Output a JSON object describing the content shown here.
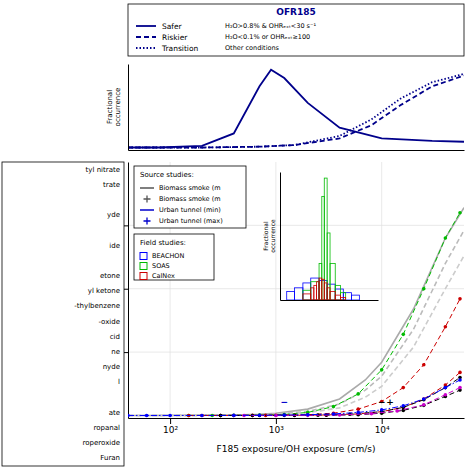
{
  "chart_data": [
    {
      "type": "line",
      "xlabel": "F185 exposure/OH exposure (cm/s)",
      "log": "x",
      "xlim": [
        40,
        60000
      ],
      "ylim": [
        -0.01,
        1.0
      ],
      "xticks": [
        {
          "value": 100,
          "label": "10²"
        },
        {
          "value": 1000,
          "label": "10³"
        },
        {
          "value": 10000,
          "label": "10⁴"
        }
      ],
      "yticks": [
        0.25,
        0.5,
        0.75
      ],
      "tick_labels": "x",
      "grid": true,
      "series": [
        {
          "color": "#aaaaaa",
          "line_style": "solid",
          "x": [
            40,
            60,
            100,
            200,
            400,
            700,
            1000,
            2000,
            4000,
            7000,
            10000,
            20000,
            40000,
            60000
          ],
          "values": [
            8e-05,
            0.00015,
            0.0003,
            0.0008,
            0.002,
            0.005,
            0.009,
            0.025,
            0.065,
            0.14,
            0.21,
            0.42,
            0.7,
            0.82
          ]
        },
        {
          "color": "#bbbbbb",
          "line_style": "dashed",
          "x": [
            40,
            60,
            100,
            200,
            400,
            700,
            1000,
            2000,
            4000,
            7000,
            10000,
            20000,
            40000,
            60000
          ],
          "values": [
            4e-05,
            8e-05,
            0.00018,
            0.0005,
            0.0013,
            0.003,
            0.006,
            0.016,
            0.045,
            0.1,
            0.155,
            0.34,
            0.6,
            0.73
          ]
        },
        {
          "color": "#cccccc",
          "line_style": "dashed",
          "x": [
            40,
            60,
            100,
            200,
            400,
            700,
            1000,
            2000,
            4000,
            7000,
            10000,
            20000,
            40000,
            60000
          ],
          "values": [
            2e-05,
            4e-05,
            0.0001,
            0.0003,
            0.0008,
            0.002,
            0.0038,
            0.011,
            0.03,
            0.072,
            0.115,
            0.27,
            0.5,
            0.63
          ]
        },
        {
          "color": "#00bb00",
          "marker": "circle",
          "line_style": "dashed",
          "x": [
            150,
            250,
            400,
            700,
            1200,
            2000,
            3500,
            6000,
            10000,
            16000,
            25000,
            40000,
            55000
          ],
          "values": [
            8e-05,
            0.00015,
            0.0004,
            0.0012,
            0.004,
            0.012,
            0.035,
            0.085,
            0.18,
            0.32,
            0.5,
            0.7,
            0.8
          ]
        },
        {
          "color": "#cc0000",
          "marker": "circle",
          "line_style": "dashed",
          "x": [
            150,
            300,
            600,
            1000,
            2000,
            3500,
            6000,
            10000,
            16000,
            25000,
            40000,
            55000
          ],
          "values": [
            6e-05,
            0.00012,
            0.0003,
            0.0009,
            0.003,
            0.009,
            0.025,
            0.055,
            0.11,
            0.2,
            0.35,
            0.46
          ]
        },
        {
          "color": "#cc0000",
          "marker": "circle",
          "line_style": "dashed",
          "x": [
            200,
            400,
            800,
            1500,
            3000,
            6000,
            10000,
            16000,
            25000,
            40000,
            55000
          ],
          "values": [
            4e-05,
            0.0001,
            0.00025,
            0.0007,
            0.002,
            0.006,
            0.015,
            0.032,
            0.065,
            0.12,
            0.17
          ]
        },
        {
          "color": "#000000",
          "marker": "circle",
          "line_style": "dashed",
          "x": [
            300,
            600,
            1200,
            2500,
            5000,
            10000,
            16000,
            25000,
            40000,
            55000
          ],
          "values": [
            5e-05,
            0.00012,
            0.0004,
            0.0013,
            0.005,
            0.015,
            0.032,
            0.062,
            0.11,
            0.15
          ]
        },
        {
          "color": "#000000",
          "marker": "circle",
          "line_style": "dashed",
          "x": [
            300,
            700,
            1500,
            3000,
            6000,
            10000,
            16000,
            25000,
            40000,
            55000
          ],
          "values": [
            3e-05,
            8e-05,
            0.00025,
            0.0009,
            0.003,
            0.009,
            0.02,
            0.04,
            0.075,
            0.1
          ]
        },
        {
          "color": "#cc00cc",
          "marker": "circle",
          "line_style": "dashed",
          "x": [
            500,
            1000,
            2000,
            4000,
            8000,
            14000,
            25000,
            40000,
            55000
          ],
          "values": [
            5e-05,
            0.00015,
            0.0005,
            0.0018,
            0.007,
            0.018,
            0.042,
            0.082,
            0.11
          ]
        },
        {
          "color": "#0000ff",
          "marker": "circle",
          "line_style": "dashdot",
          "x": [
            40,
            60,
            100,
            200,
            400,
            700,
            1200,
            2000,
            3500,
            6000,
            10000,
            16000,
            25000,
            40000,
            55000
          ],
          "values": [
            1.5e-05,
            3e-05,
            7e-05,
            0.00015,
            0.0003,
            0.0007,
            0.0015,
            0.003,
            0.006,
            0.012,
            0.022,
            0.038,
            0.065,
            0.11,
            0.14
          ]
        }
      ],
      "annotations": [
        {
          "text": "−",
          "x": 1200,
          "y": 0.055,
          "color": "#0000cc"
        },
        {
          "text": "+",
          "x": 12000,
          "y": 0.055,
          "color": "#000000"
        },
        {
          "text": "−",
          "x": 10000,
          "y": 0.055,
          "color": "#000000"
        }
      ],
      "legend_title": "Source studies:",
      "legend_entries": [
        {
          "label": "Biomass smoke (m",
          "color": "#555555",
          "line_style": "solid"
        },
        {
          "label": "Biomass smoke (m",
          "color": "#555555",
          "marker": "plus"
        },
        {
          "label": "Urban tunnel (min)",
          "color": "#0000cc",
          "line_style": "solid"
        },
        {
          "label": "Urban tunnel (max)",
          "color": "#0000cc",
          "marker": "plus"
        }
      ]
    },
    {
      "type": "line",
      "log": "x",
      "xlim": [
        40,
        60000
      ],
      "ylim": [
        -0.02,
        1.02
      ],
      "ylabel": "Fractional\noccurrence",
      "tick_labels": false,
      "legend_title": "OFR185",
      "series": [
        {
          "name": "Safer",
          "note": "H₂O>0.8% & OHRₑₓₜ<30 s⁻¹",
          "color": "#00008B",
          "line_style": "solid",
          "x": [
            40,
            80,
            200,
            400,
            700,
            900,
            1200,
            2000,
            4000,
            10000,
            30000,
            60000
          ],
          "values": [
            0.01,
            0.01,
            0.03,
            0.18,
            0.75,
            0.95,
            0.85,
            0.55,
            0.25,
            0.12,
            0.09,
            0.08
          ]
        },
        {
          "name": "Riskier",
          "note": "H₂O<0.1% or OHRₑₓₜ≥100",
          "color": "#00008B",
          "line_style": "dashed",
          "x": [
            40,
            200,
            700,
            1500,
            4000,
            8000,
            15000,
            30000,
            60000
          ],
          "values": [
            0.01,
            0.01,
            0.02,
            0.04,
            0.12,
            0.28,
            0.52,
            0.75,
            0.88
          ]
        },
        {
          "name": "Transition",
          "note": "Other conditions",
          "color": "#00008B",
          "line_style": "dotted",
          "x": [
            40,
            200,
            700,
            1500,
            4000,
            8000,
            15000,
            30000,
            60000
          ],
          "values": [
            0.01,
            0.01,
            0.02,
            0.04,
            0.15,
            0.35,
            0.6,
            0.8,
            0.9
          ]
        }
      ]
    },
    {
      "type": "histogram",
      "log": "x",
      "xlim": [
        150,
        10000
      ],
      "ylim": [
        0,
        1.05
      ],
      "ylabel": "Fractional\noccurrence",
      "tick_labels": false,
      "legend_title": "Field studies:",
      "series": [
        {
          "name": "BEACHON",
          "color": "#0000ff",
          "bins": [
            200,
            280,
            400,
            560,
            800,
            1130,
            1600,
            2260,
            3200,
            4500
          ],
          "values": [
            0.07,
            0.1,
            0.14,
            0.18,
            0.16,
            0.13,
            0.09,
            0.06,
            0.04
          ]
        },
        {
          "name": "SOAS",
          "color": "#00bb00",
          "bins": [
            400,
            560,
            800,
            900,
            1000,
            1130,
            1280,
            1600,
            2000,
            2500
          ],
          "values": [
            0.08,
            0.15,
            0.3,
            0.85,
            1.0,
            0.55,
            0.3,
            0.12,
            0.06
          ]
        },
        {
          "name": "CalNex",
          "color": "#cc0000",
          "bins": [
            400,
            560,
            640,
            720,
            800,
            900,
            1000,
            1130,
            1280,
            1600,
            2000,
            2500
          ],
          "values": [
            0.05,
            0.1,
            0.12,
            0.15,
            0.18,
            0.17,
            0.14,
            0.1,
            0.07,
            0.04,
            0.02
          ]
        }
      ]
    },
    {
      "type": "labels",
      "categories": [
        "tyl nitrate",
        "trate",
        null,
        "yde",
        null,
        "ide",
        null,
        "etone",
        "yl ketone",
        "-thylbenzene",
        "-oxide",
        "cid",
        "ne",
        "nyde",
        "l",
        null,
        "ate",
        "ropanal",
        "roperoxide",
        "Furan"
      ]
    }
  ]
}
